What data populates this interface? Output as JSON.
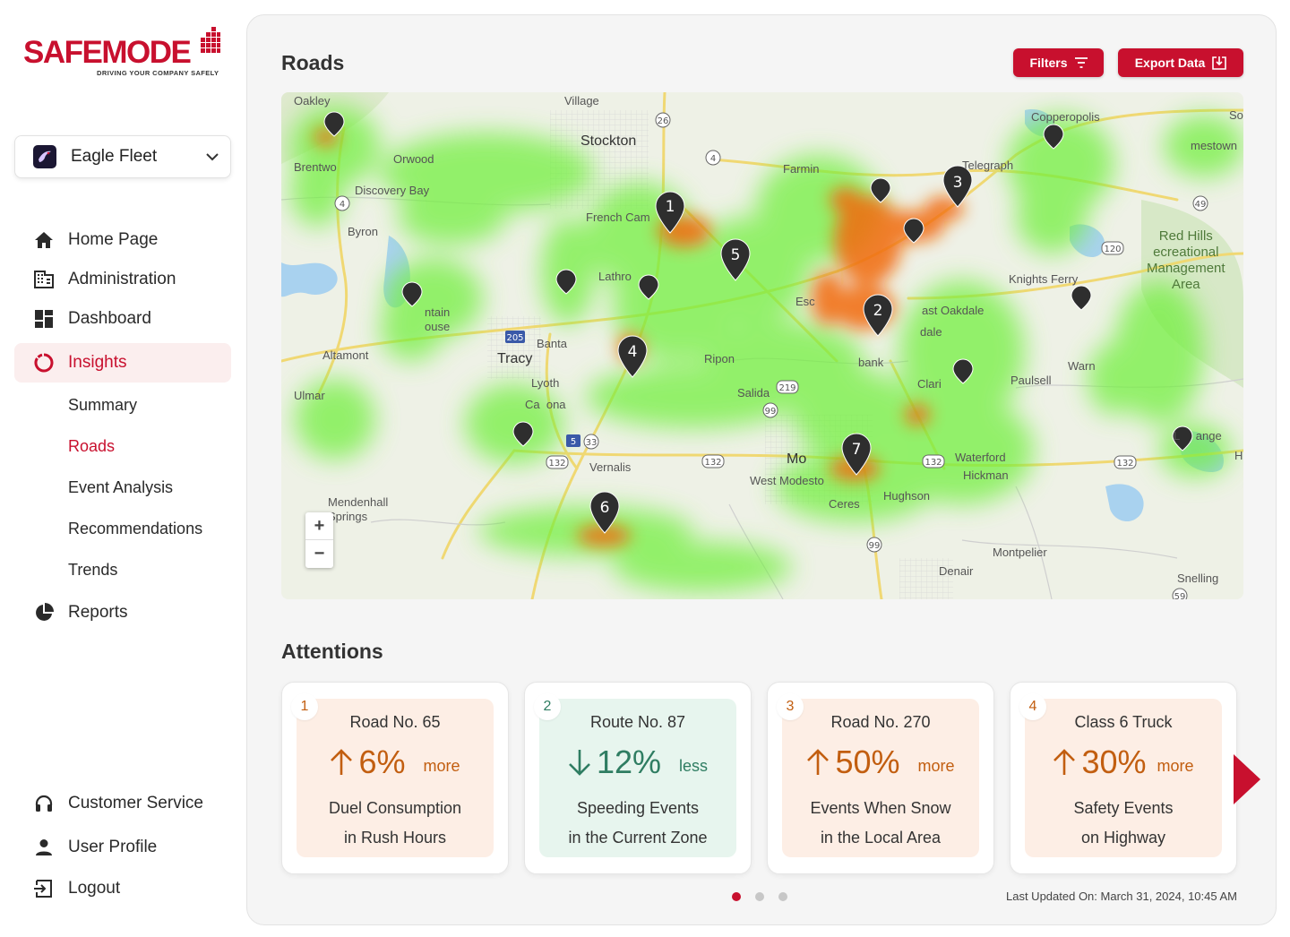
{
  "brand": {
    "name_part1": "SAFE",
    "name_part2": "MODE",
    "tagline": "DRIVING YOUR COMPANY SAFELY",
    "accent": "#c8102e"
  },
  "fleet": {
    "name": "Eagle Fleet"
  },
  "nav": {
    "home": "Home Page",
    "administration": "Administration",
    "dashboard": "Dashboard",
    "insights": "Insights",
    "sub": {
      "summary": "Summary",
      "roads": "Roads",
      "event_analysis": "Event Analysis",
      "recommendations": "Recommendations",
      "trends": "Trends"
    },
    "reports": "Reports",
    "customer_service": "Customer Service",
    "user_profile": "User Profile",
    "logout": "Logout"
  },
  "page": {
    "title": "Roads",
    "filters_label": "Filters",
    "export_label": "Export Data"
  },
  "map": {
    "zoom_in": "+",
    "zoom_out": "−",
    "labels": {
      "oakley": "Oakley",
      "village": "Village",
      "stockton": "Stockton",
      "copperopolis": "Copperopolis",
      "orwood": "Orwood",
      "brentwood": "Brentwo",
      "discovery_bay": "Discovery Bay",
      "farmington": "Farmin",
      "telegraph": "Telegraph",
      "jamestown": "mestown",
      "so": "So",
      "french_camp": "French Cam",
      "byron": "Byron",
      "red_hills": "Red Hills\necreational\nManagement\nArea",
      "lathrop": "Lathro",
      "knights_ferry": "Knights Ferry",
      "mountain_house": "ntain\nouse",
      "escalon": "Esc",
      "east_oakdale": "ast Oakdale",
      "dale": "dale",
      "banta": "Banta",
      "altamont": "Altamont",
      "tracy": "Tracy",
      "ripon": "Ripon",
      "riverbank": "bank",
      "paulsell": "Paulsell",
      "waterford_label": "Warn",
      "lyoth": "Lyoth",
      "salida": "Salida",
      "clarks": "Clari",
      "ulmar": "Ulmar",
      "carbona": "Ca  ona",
      "la_grange": "L     ange",
      "h": "H",
      "vernalis": "Vernalis",
      "modesto": "Mo",
      "waterford": "Waterford",
      "hickman": "Hickman",
      "west_modesto": "West Modesto",
      "mendenhall": "Mendenhall\nSprings",
      "ceres": "Ceres",
      "hughson": "Hughson",
      "montpelier": "Montpelier",
      "denair": "Denair",
      "snelling": "Snelling"
    },
    "shields": [
      "26",
      "4",
      "4",
      "49",
      "120",
      "205",
      "5",
      "33",
      "132",
      "132",
      "132",
      "132",
      "219",
      "99",
      "99",
      "59"
    ],
    "markers": [
      "1",
      "2",
      "3",
      "4",
      "5",
      "6",
      "7"
    ]
  },
  "attentions": {
    "title": "Attentions",
    "cards": [
      {
        "num": "1",
        "name": "Road No. 65",
        "pct": "6%",
        "word": "more",
        "line1": "Duel Consumption",
        "line2": "in Rush Hours",
        "direction": "up"
      },
      {
        "num": "2",
        "name": "Route No. 87",
        "pct": "12%",
        "word": "less",
        "line1": "Speeding Events",
        "line2": "in the Current Zone",
        "direction": "down"
      },
      {
        "num": "3",
        "name": "Road No. 270",
        "pct": "50%",
        "word": "more",
        "line1": "Events When Snow",
        "line2": "in the Local Area",
        "direction": "up"
      },
      {
        "num": "4",
        "name": "Class 6 Truck",
        "pct": "30%",
        "word": "more",
        "line1": "Safety Events",
        "line2": "on Highway",
        "direction": "up"
      }
    ],
    "pagination": {
      "total": 3,
      "current": 1
    },
    "last_updated": "Last Updated On: March 31, 2024, 10:45 AM"
  },
  "colors": {
    "up": "#c25e10",
    "down": "#2f7d62",
    "up_bg": "#fdeee5",
    "down_bg": "#e7f5ee"
  }
}
